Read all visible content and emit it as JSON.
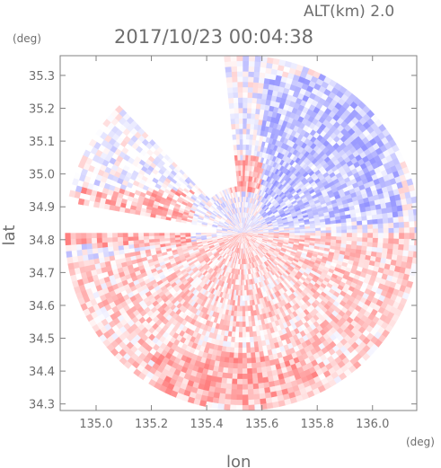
{
  "chart_data": {
    "type": "heatmap",
    "title": "2017/10/23 00:04:38",
    "altitude_label": "ALT(km) 2.0",
    "xlabel": "lon",
    "ylabel": "lat",
    "x_unit": "(deg)",
    "y_unit": "(deg)",
    "xlim": [
      134.87,
      136.16
    ],
    "ylim": [
      34.28,
      35.36
    ],
    "x_ticks": [
      135.0,
      135.2,
      135.4,
      135.6,
      135.8,
      136.0
    ],
    "x_tick_labels": [
      "135.0",
      "135.2",
      "135.4",
      "135.6",
      "135.8",
      "136.0"
    ],
    "y_ticks": [
      34.3,
      34.4,
      34.5,
      34.6,
      34.7,
      34.8,
      34.9,
      35.0,
      35.1,
      35.2,
      35.3
    ],
    "y_tick_labels": [
      "34.3",
      "34.4",
      "34.5",
      "34.6",
      "34.7",
      "34.8",
      "34.9",
      "35.0",
      "35.1",
      "35.2",
      "35.3"
    ],
    "radar_center": {
      "lon": 135.53,
      "lat": 34.82
    },
    "radar_radius_deg_lat": 0.54,
    "grid": false,
    "colors": {
      "positive": "#ff6e6e",
      "negative": "#6e6eff",
      "neutral": "#ffffff",
      "axis": "#808080"
    },
    "regions": [
      {
        "name": "south-east red band",
        "lon": [
          135.2,
          135.8
        ],
        "lat": [
          34.3,
          34.45
        ],
        "sign": "positive"
      },
      {
        "name": "north-east blue sector",
        "lon": [
          135.6,
          136.1
        ],
        "lat": [
          34.85,
          35.3
        ],
        "sign": "negative"
      },
      {
        "name": "center red cell",
        "lon": [
          135.45,
          135.62
        ],
        "lat": [
          34.95,
          35.05
        ],
        "sign": "positive"
      },
      {
        "name": "west red band",
        "lon": [
          134.87,
          135.35
        ],
        "lat": [
          34.78,
          34.95
        ],
        "sign": "positive"
      }
    ]
  }
}
